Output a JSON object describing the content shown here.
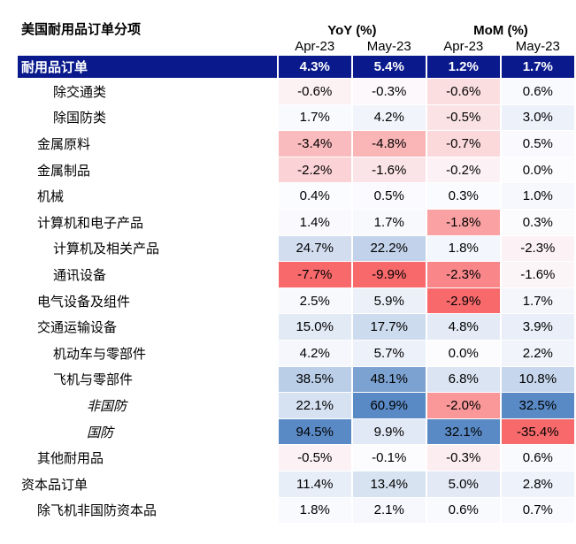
{
  "header": {
    "title": "美国耐用品订单分项",
    "groups": [
      "YoY (%)",
      "MoM (%)"
    ],
    "periods": [
      "Apr-23",
      "May-23",
      "Apr-23",
      "May-23"
    ]
  },
  "table": {
    "total": {
      "label": "耐用品订单",
      "values": [
        "4.3%",
        "5.4%",
        "1.2%",
        "1.7%"
      ]
    },
    "rows": [
      {
        "label": "除交通类",
        "values": [
          "-0.6%",
          "-0.3%",
          "-0.6%",
          "0.6%"
        ]
      },
      {
        "label": "除国防类",
        "values": [
          "1.7%",
          "4.2%",
          "-0.5%",
          "3.0%"
        ]
      },
      {
        "label": "金属原料",
        "values": [
          "-3.4%",
          "-4.8%",
          "-0.7%",
          "0.5%"
        ]
      },
      {
        "label": "金属制品",
        "values": [
          "-2.2%",
          "-1.6%",
          "-0.2%",
          "0.0%"
        ]
      },
      {
        "label": "机械",
        "values": [
          "0.4%",
          "0.5%",
          "0.3%",
          "1.0%"
        ]
      },
      {
        "label": "计算机和电子产品",
        "values": [
          "1.4%",
          "1.7%",
          "-1.8%",
          "0.3%"
        ]
      },
      {
        "label": "计算机及相关产品",
        "values": [
          "24.7%",
          "22.2%",
          "1.8%",
          "-2.3%"
        ]
      },
      {
        "label": "通讯设备",
        "values": [
          "-7.7%",
          "-9.9%",
          "-2.3%",
          "-1.6%"
        ]
      },
      {
        "label": "电气设备及组件",
        "values": [
          "2.5%",
          "5.9%",
          "-2.9%",
          "1.7%"
        ]
      },
      {
        "label": "交通运输设备",
        "values": [
          "15.0%",
          "17.7%",
          "4.8%",
          "3.9%"
        ]
      },
      {
        "label": "机动车与零部件",
        "values": [
          "4.2%",
          "5.7%",
          "0.0%",
          "2.2%"
        ]
      },
      {
        "label": "飞机与零部件",
        "values": [
          "38.5%",
          "48.1%",
          "6.8%",
          "10.8%"
        ]
      },
      {
        "label": "非国防",
        "values": [
          "22.1%",
          "60.9%",
          "-2.0%",
          "32.5%"
        ]
      },
      {
        "label": "国防",
        "values": [
          "94.5%",
          "9.9%",
          "32.1%",
          "-35.4%"
        ]
      },
      {
        "label": "其他耐用品",
        "values": [
          "-0.5%",
          "-0.1%",
          "-0.3%",
          "0.6%"
        ]
      },
      {
        "label": "资本品订单",
        "values": [
          "11.4%",
          "13.4%",
          "5.0%",
          "2.8%"
        ]
      },
      {
        "label": "除飞机非国防资本品",
        "values": [
          "1.8%",
          "2.1%",
          "0.6%",
          "0.7%"
        ]
      }
    ]
  }
}
